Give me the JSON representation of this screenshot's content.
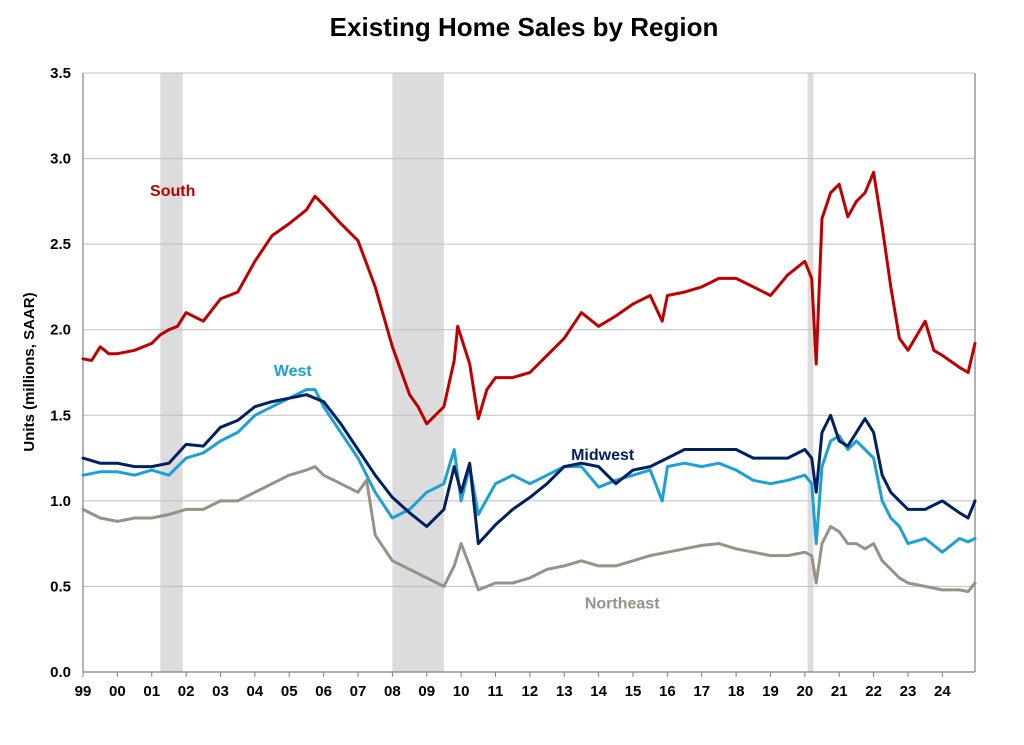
{
  "chart_data": {
    "type": "line",
    "title": "Existing Home Sales by Region",
    "xlabel": "",
    "ylabel": "Units (millions, SAAR)",
    "ylim": [
      0,
      3.5
    ],
    "xlim": [
      1999.0,
      2024.95
    ],
    "yticks": [
      "0.0",
      "0.5",
      "1.0",
      "1.5",
      "2.0",
      "2.5",
      "3.0",
      "3.5"
    ],
    "xtick_labels": [
      "99",
      "00",
      "01",
      "02",
      "03",
      "04",
      "05",
      "06",
      "07",
      "08",
      "09",
      "10",
      "11",
      "12",
      "13",
      "14",
      "15",
      "16",
      "17",
      "18",
      "19",
      "20",
      "21",
      "22",
      "23",
      "24"
    ],
    "grid": true,
    "recessions": [
      {
        "start": 2001.25,
        "end": 2001.9
      },
      {
        "start": 2008.0,
        "end": 2009.5
      },
      {
        "start": 2020.08,
        "end": 2020.25
      }
    ],
    "series": [
      {
        "name": "South",
        "color": "#c00000",
        "x": [
          1999.0,
          1999.25,
          1999.5,
          1999.75,
          2000.0,
          2000.5,
          2001.0,
          2001.25,
          2001.5,
          2001.75,
          2002.0,
          2002.5,
          2003.0,
          2003.5,
          2004.0,
          2004.5,
          2005.0,
          2005.5,
          2005.75,
          2006.0,
          2006.5,
          2007.0,
          2007.5,
          2008.0,
          2008.5,
          2008.75,
          2009.0,
          2009.5,
          2009.8,
          2009.9,
          2010.25,
          2010.5,
          2010.75,
          2011.0,
          2011.5,
          2012.0,
          2012.5,
          2013.0,
          2013.5,
          2014.0,
          2014.5,
          2015.0,
          2015.5,
          2015.85,
          2016.0,
          2016.5,
          2017.0,
          2017.5,
          2018.0,
          2018.5,
          2019.0,
          2019.5,
          2020.0,
          2020.2,
          2020.33,
          2020.5,
          2020.75,
          2021.0,
          2021.25,
          2021.5,
          2021.75,
          2022.0,
          2022.25,
          2022.5,
          2022.75,
          2023.0,
          2023.5,
          2023.75,
          2024.0,
          2024.5,
          2024.75,
          2024.95
        ],
        "values": [
          1.83,
          1.82,
          1.9,
          1.86,
          1.86,
          1.88,
          1.92,
          1.97,
          2.0,
          2.02,
          2.1,
          2.05,
          2.18,
          2.22,
          2.4,
          2.55,
          2.62,
          2.7,
          2.78,
          2.73,
          2.62,
          2.52,
          2.25,
          1.9,
          1.62,
          1.55,
          1.45,
          1.55,
          1.82,
          2.02,
          1.8,
          1.48,
          1.65,
          1.72,
          1.72,
          1.75,
          1.85,
          1.95,
          2.1,
          2.02,
          2.08,
          2.15,
          2.2,
          2.05,
          2.2,
          2.22,
          2.25,
          2.3,
          2.3,
          2.25,
          2.2,
          2.32,
          2.4,
          2.3,
          1.8,
          2.65,
          2.8,
          2.85,
          2.66,
          2.75,
          2.8,
          2.92,
          2.6,
          2.25,
          1.95,
          1.88,
          2.05,
          1.88,
          1.85,
          1.78,
          1.75,
          1.92
        ]
      },
      {
        "name": "Midwest",
        "color": "#002060",
        "x": [
          1999.0,
          1999.5,
          2000.0,
          2000.5,
          2001.0,
          2001.5,
          2002.0,
          2002.5,
          2003.0,
          2003.5,
          2004.0,
          2004.5,
          2005.0,
          2005.5,
          2005.75,
          2006.0,
          2006.5,
          2007.0,
          2007.5,
          2008.0,
          2008.5,
          2009.0,
          2009.5,
          2009.8,
          2010.0,
          2010.25,
          2010.5,
          2011.0,
          2011.5,
          2012.0,
          2012.5,
          2013.0,
          2013.5,
          2014.0,
          2014.5,
          2015.0,
          2015.5,
          2016.0,
          2016.5,
          2017.0,
          2017.5,
          2018.0,
          2018.5,
          2019.0,
          2019.5,
          2020.0,
          2020.2,
          2020.33,
          2020.5,
          2020.75,
          2021.0,
          2021.25,
          2021.5,
          2021.75,
          2022.0,
          2022.25,
          2022.5,
          2022.75,
          2023.0,
          2023.5,
          2024.0,
          2024.5,
          2024.75,
          2024.95
        ],
        "values": [
          1.25,
          1.22,
          1.22,
          1.2,
          1.2,
          1.22,
          1.33,
          1.32,
          1.43,
          1.47,
          1.55,
          1.58,
          1.6,
          1.62,
          1.6,
          1.58,
          1.45,
          1.3,
          1.15,
          1.02,
          0.93,
          0.85,
          0.95,
          1.2,
          1.05,
          1.22,
          0.75,
          0.86,
          0.95,
          1.02,
          1.1,
          1.2,
          1.22,
          1.2,
          1.1,
          1.18,
          1.2,
          1.25,
          1.3,
          1.3,
          1.3,
          1.3,
          1.25,
          1.25,
          1.25,
          1.3,
          1.25,
          1.05,
          1.4,
          1.5,
          1.35,
          1.32,
          1.4,
          1.48,
          1.4,
          1.15,
          1.05,
          1.0,
          0.95,
          0.95,
          1.0,
          0.93,
          0.9,
          1.0
        ]
      },
      {
        "name": "West",
        "color": "#1ba1d6",
        "x": [
          1999.0,
          1999.5,
          2000.0,
          2000.5,
          2001.0,
          2001.5,
          2002.0,
          2002.5,
          2003.0,
          2003.5,
          2004.0,
          2004.5,
          2005.0,
          2005.5,
          2005.75,
          2006.0,
          2006.5,
          2007.0,
          2007.5,
          2008.0,
          2008.5,
          2009.0,
          2009.5,
          2009.8,
          2010.0,
          2010.25,
          2010.5,
          2011.0,
          2011.5,
          2012.0,
          2012.5,
          2013.0,
          2013.5,
          2014.0,
          2014.5,
          2015.0,
          2015.5,
          2015.85,
          2016.0,
          2016.5,
          2017.0,
          2017.5,
          2018.0,
          2018.5,
          2019.0,
          2019.5,
          2020.0,
          2020.2,
          2020.33,
          2020.5,
          2020.75,
          2021.0,
          2021.25,
          2021.5,
          2021.75,
          2022.0,
          2022.25,
          2022.5,
          2022.75,
          2023.0,
          2023.5,
          2024.0,
          2024.5,
          2024.75,
          2024.95
        ],
        "values": [
          1.15,
          1.17,
          1.17,
          1.15,
          1.18,
          1.15,
          1.25,
          1.28,
          1.35,
          1.4,
          1.5,
          1.55,
          1.6,
          1.65,
          1.65,
          1.55,
          1.4,
          1.25,
          1.05,
          0.9,
          0.95,
          1.05,
          1.1,
          1.3,
          1.0,
          1.2,
          0.92,
          1.1,
          1.15,
          1.1,
          1.15,
          1.2,
          1.2,
          1.08,
          1.12,
          1.15,
          1.18,
          1.0,
          1.2,
          1.22,
          1.2,
          1.22,
          1.18,
          1.12,
          1.1,
          1.12,
          1.15,
          1.1,
          0.75,
          1.2,
          1.35,
          1.38,
          1.3,
          1.35,
          1.3,
          1.25,
          1.0,
          0.9,
          0.85,
          0.75,
          0.78,
          0.7,
          0.78,
          0.76,
          0.78
        ]
      },
      {
        "name": "Northeast",
        "color": "#989187",
        "x": [
          1999.0,
          1999.5,
          2000.0,
          2000.5,
          2001.0,
          2001.5,
          2002.0,
          2002.5,
          2003.0,
          2003.5,
          2004.0,
          2004.5,
          2005.0,
          2005.5,
          2005.75,
          2006.0,
          2006.5,
          2007.0,
          2007.25,
          2007.5,
          2008.0,
          2008.5,
          2009.0,
          2009.5,
          2009.8,
          2010.0,
          2010.25,
          2010.5,
          2011.0,
          2011.5,
          2012.0,
          2012.5,
          2013.0,
          2013.5,
          2014.0,
          2014.5,
          2015.0,
          2015.5,
          2016.0,
          2016.5,
          2017.0,
          2017.5,
          2018.0,
          2018.5,
          2019.0,
          2019.5,
          2020.0,
          2020.2,
          2020.33,
          2020.5,
          2020.75,
          2021.0,
          2021.25,
          2021.5,
          2021.75,
          2022.0,
          2022.25,
          2022.5,
          2022.75,
          2023.0,
          2023.5,
          2024.0,
          2024.5,
          2024.75,
          2024.95
        ],
        "values": [
          0.95,
          0.9,
          0.88,
          0.9,
          0.9,
          0.92,
          0.95,
          0.95,
          1.0,
          1.0,
          1.05,
          1.1,
          1.15,
          1.18,
          1.2,
          1.15,
          1.1,
          1.05,
          1.12,
          0.8,
          0.65,
          0.6,
          0.55,
          0.5,
          0.62,
          0.75,
          0.62,
          0.48,
          0.52,
          0.52,
          0.55,
          0.6,
          0.62,
          0.65,
          0.62,
          0.62,
          0.65,
          0.68,
          0.7,
          0.72,
          0.74,
          0.75,
          0.72,
          0.7,
          0.68,
          0.68,
          0.7,
          0.68,
          0.52,
          0.75,
          0.85,
          0.82,
          0.75,
          0.75,
          0.72,
          0.75,
          0.65,
          0.6,
          0.55,
          0.52,
          0.5,
          0.48,
          0.48,
          0.47,
          0.52
        ]
      }
    ],
    "series_labels": [
      {
        "name": "South",
        "text": "South",
        "color": "#c00000",
        "at_x": 2000.95,
        "at_y": 2.78
      },
      {
        "name": "West",
        "text": "West",
        "color": "#1ba1d6",
        "at_x": 2004.55,
        "at_y": 1.73
      },
      {
        "name": "Midwest",
        "text": "Midwest",
        "color": "#002060",
        "at_x": 2013.2,
        "at_y": 1.24
      },
      {
        "name": "Northeast",
        "text": "Northeast",
        "color": "#989187",
        "at_x": 2013.6,
        "at_y": 0.37
      }
    ]
  }
}
